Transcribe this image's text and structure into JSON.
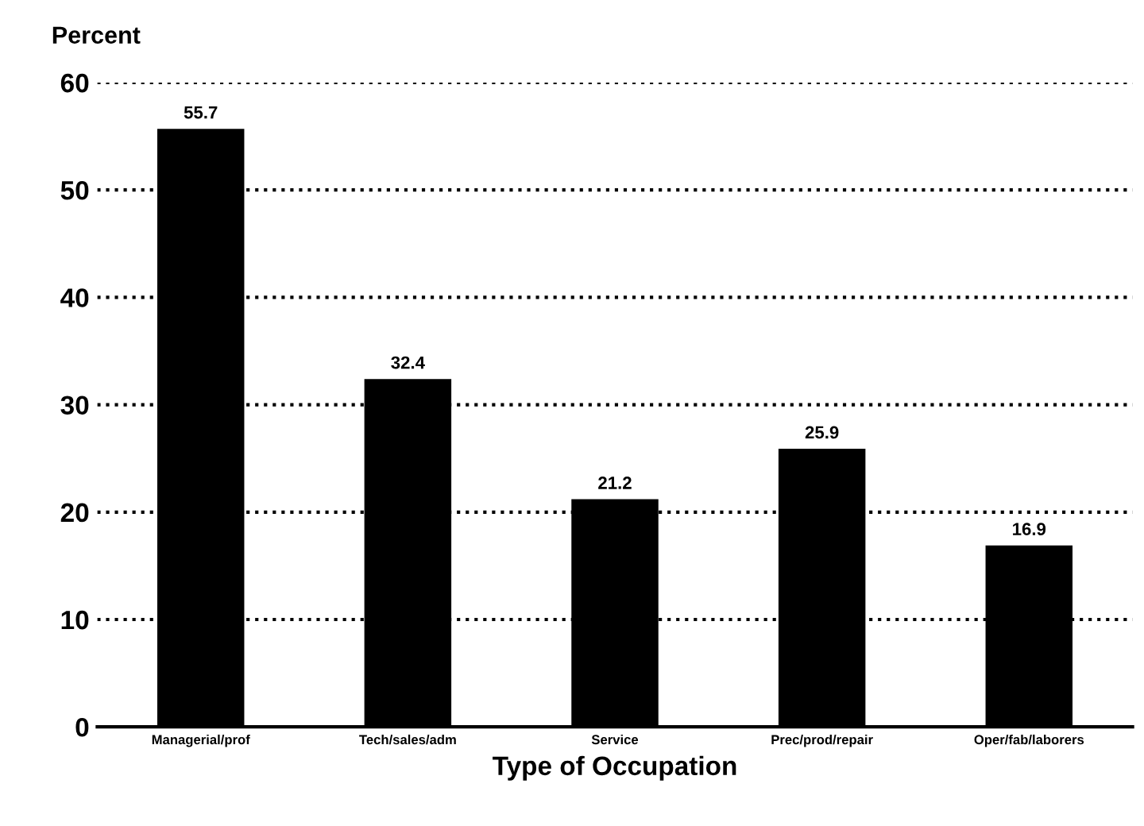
{
  "chart_data": {
    "type": "bar",
    "ylabel": "Percent",
    "xlabel": "Type of Occupation",
    "categories": [
      "Managerial/prof",
      "Tech/sales/adm",
      "Service",
      "Prec/prod/repair",
      "Oper/fab/laborers"
    ],
    "values": [
      55.7,
      32.4,
      21.2,
      25.9,
      16.9
    ],
    "color": "#000000",
    "ylim": [
      0,
      60
    ],
    "yticks": [
      0,
      10,
      20,
      30,
      40,
      50,
      60
    ],
    "grid": "y",
    "line_style": "dotted",
    "data_labels": true
  }
}
